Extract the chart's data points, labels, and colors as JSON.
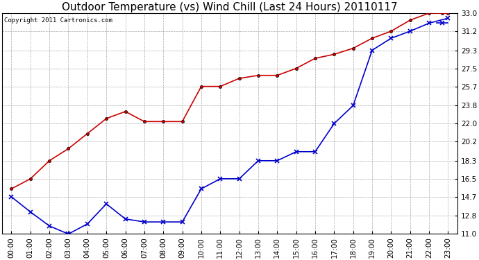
{
  "title": "Outdoor Temperature (vs) Wind Chill (Last 24 Hours) 20110117",
  "copyright": "Copyright 2011 Cartronics.com",
  "x_labels": [
    "00:00",
    "01:00",
    "02:00",
    "03:00",
    "04:00",
    "05:00",
    "06:00",
    "07:00",
    "08:00",
    "09:00",
    "10:00",
    "11:00",
    "12:00",
    "13:00",
    "14:00",
    "15:00",
    "16:00",
    "17:00",
    "18:00",
    "19:00",
    "20:00",
    "21:00",
    "22:00",
    "23:00"
  ],
  "temp_red": [
    15.5,
    16.5,
    18.3,
    19.5,
    21.0,
    22.5,
    23.2,
    22.2,
    22.2,
    22.2,
    25.7,
    25.7,
    26.5,
    26.8,
    26.8,
    27.5,
    28.5,
    28.9,
    29.5,
    30.5,
    31.2,
    32.3,
    33.0,
    33.0
  ],
  "wind_blue": [
    14.7,
    13.2,
    11.8,
    11.0,
    12.0,
    14.0,
    12.5,
    12.2,
    12.2,
    12.2,
    15.5,
    16.5,
    16.5,
    18.3,
    18.3,
    19.2,
    19.2,
    22.0,
    23.8,
    29.3,
    30.5,
    31.2,
    32.0,
    32.5
  ],
  "ylim": [
    11.0,
    33.0
  ],
  "yticks": [
    11.0,
    12.8,
    14.7,
    16.5,
    18.3,
    20.2,
    22.0,
    23.8,
    25.7,
    27.5,
    29.3,
    31.2,
    33.0
  ],
  "red_color": "#cc0000",
  "blue_color": "#0000cc",
  "grid_color": "#aaaaaa",
  "bg_color": "#ffffff",
  "title_fontsize": 11,
  "copyright_fontsize": 6.5,
  "tick_fontsize": 7.5
}
